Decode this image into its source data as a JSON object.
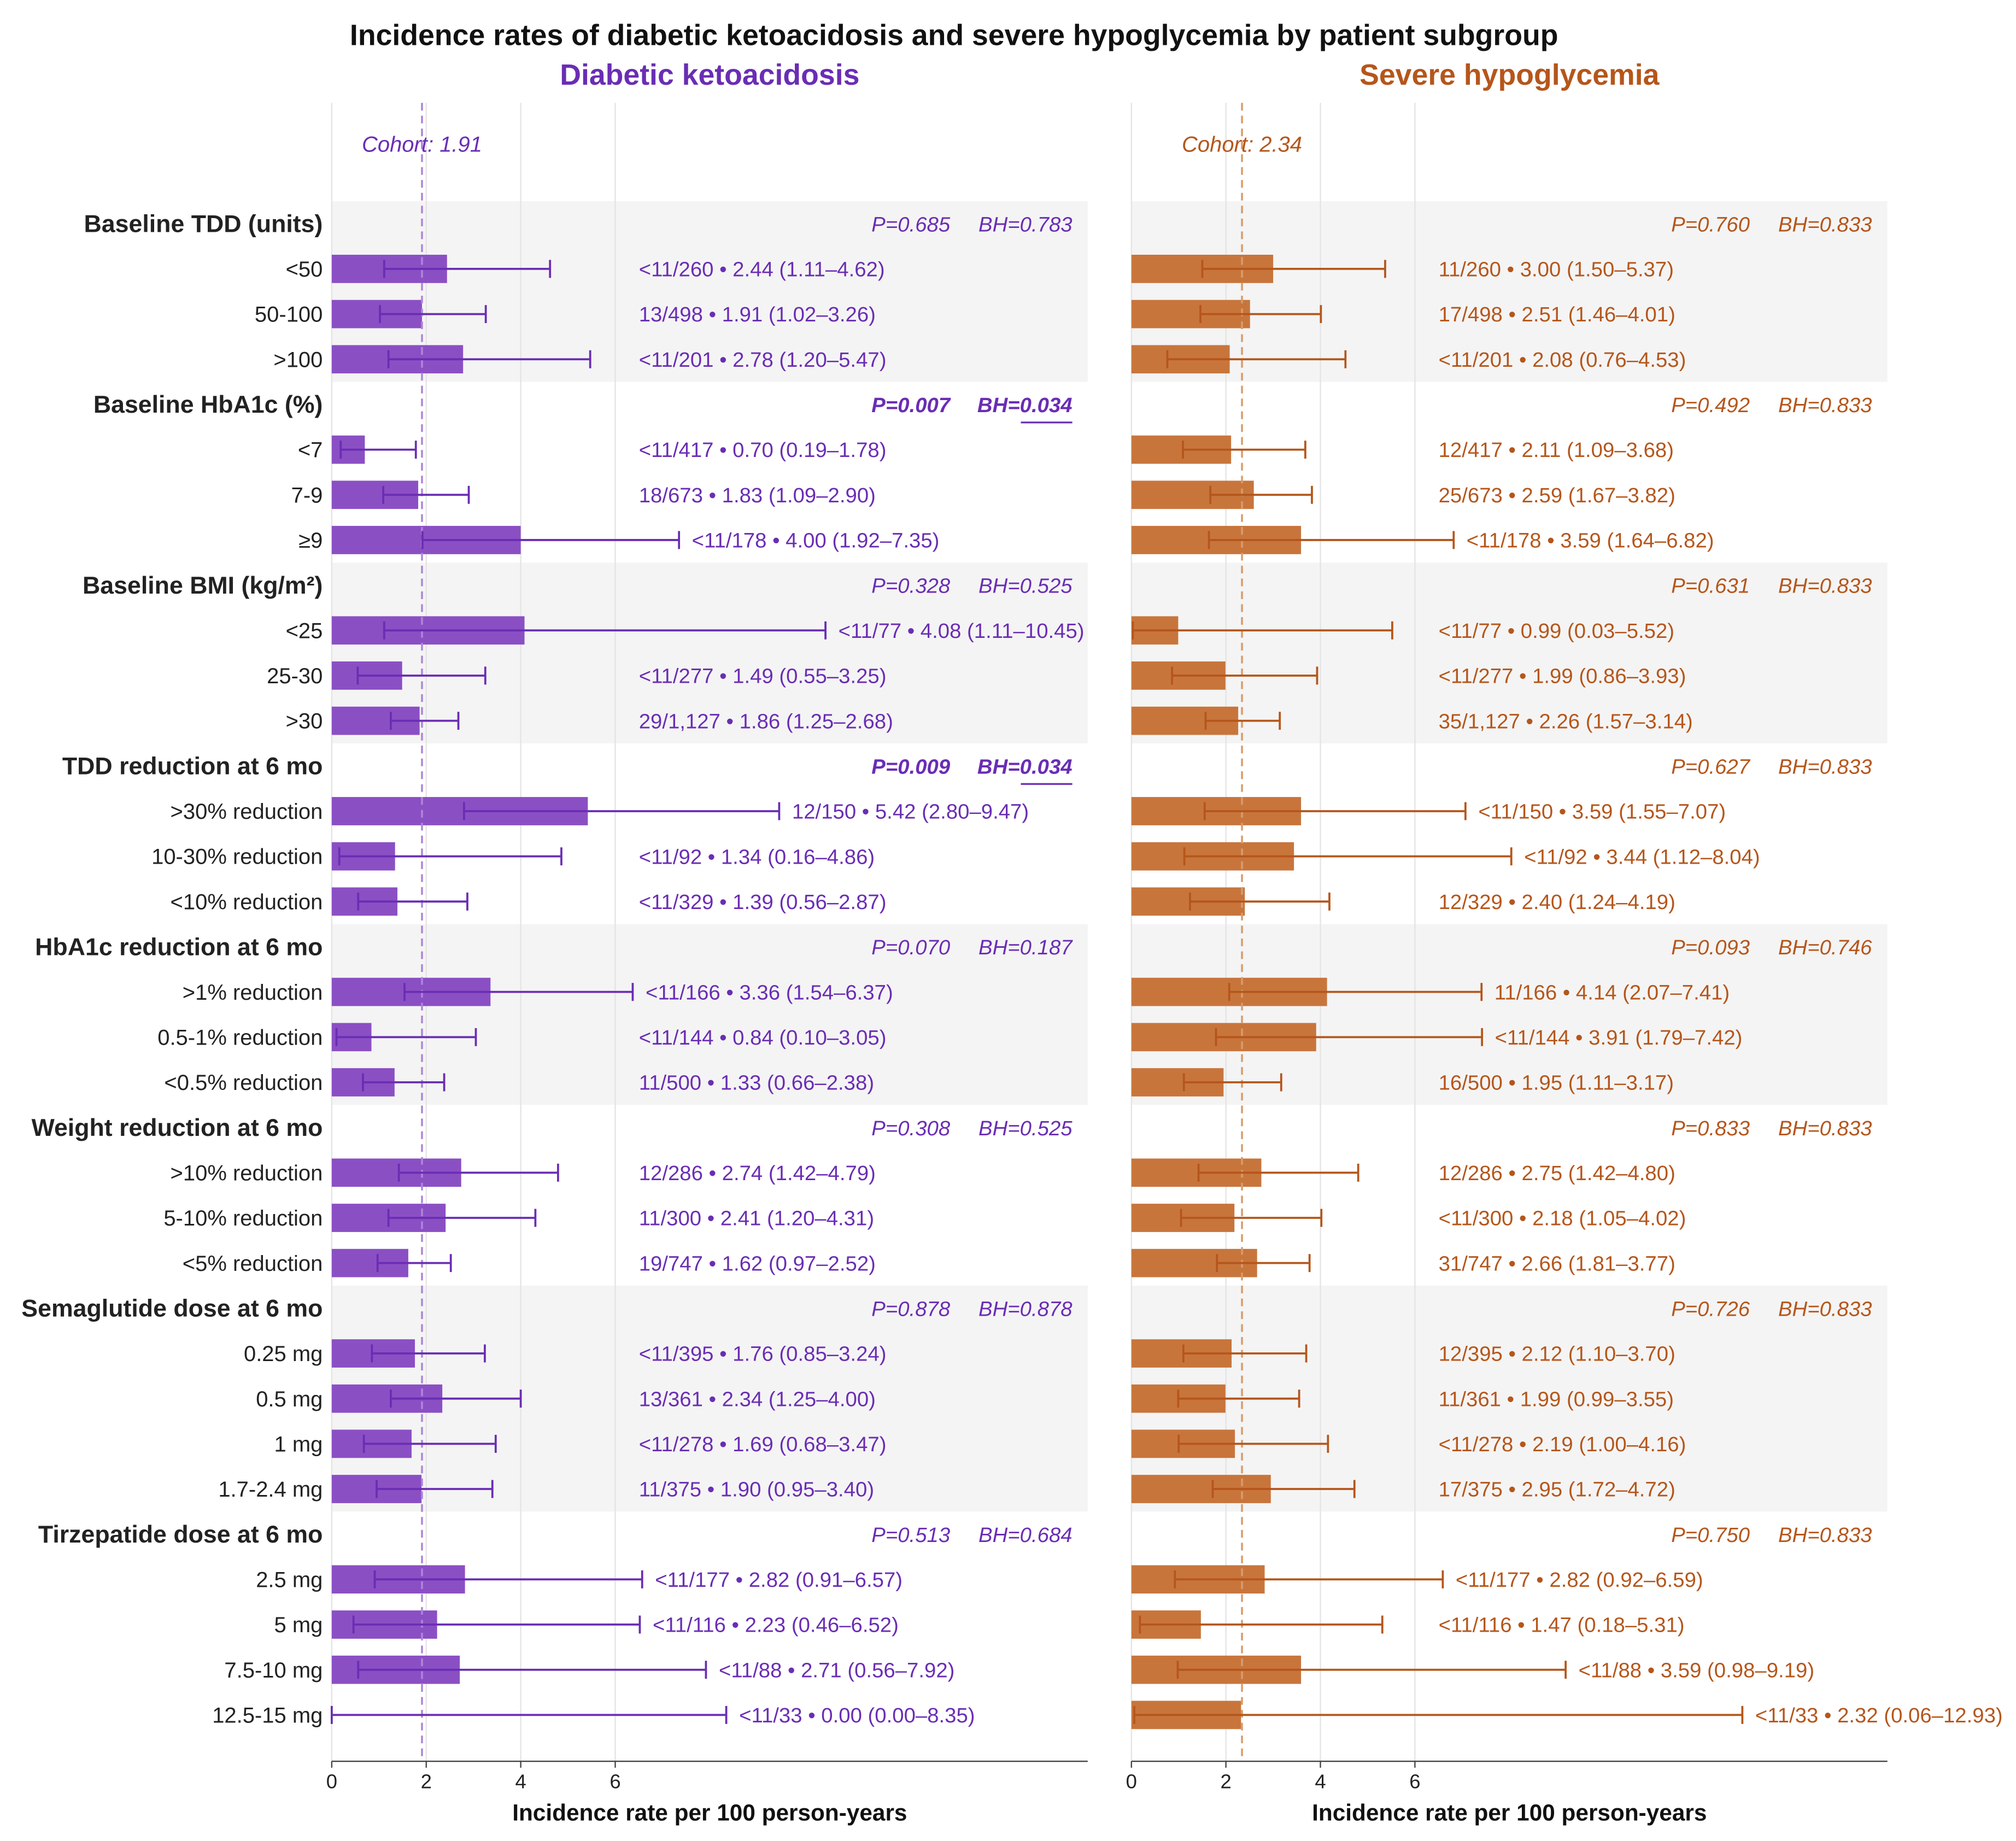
{
  "chart_data": {
    "type": "bar",
    "orientation": "horizontal",
    "title": "Incidence rates of diabetic ketoacidosis and severe hypoglycemia by patient subgroup",
    "xlabel": "Incidence rate per 100 person-years",
    "xlim": [
      0,
      16
    ],
    "xticks": [
      0,
      2,
      4,
      6
    ],
    "grid": "vertical",
    "band_color": "#f4f4f4",
    "grid_color": "#e4e4e4",
    "panels": [
      {
        "key": "dka",
        "title": "Diabetic ketoacidosis",
        "color": "#6a2db4",
        "bar_color": "#8b4fc4",
        "cohort_color": "#ad86da",
        "cohort_label": "Cohort: 1.91",
        "cohort_rate": 1.91
      },
      {
        "key": "sh",
        "title": "Severe hypoglycemia",
        "color": "#b5561b",
        "bar_color": "#c8753c",
        "cohort_color": "#d79d6c",
        "cohort_label": "Cohort: 2.34",
        "cohort_rate": 2.34
      }
    ],
    "groups": [
      {
        "name": "Baseline TDD (units)",
        "shaded": true,
        "tests": {
          "dka": {
            "p": "P=0.685",
            "bh": "BH=0.783",
            "significant": false
          },
          "sh": {
            "p": "P=0.760",
            "bh": "BH=0.833",
            "significant": false
          }
        },
        "rows": [
          {
            "label": "<50",
            "dka": {
              "text": "<11/260 • 2.44 (1.11–4.62)",
              "rate": 2.44,
              "lo": 1.11,
              "hi": 4.62
            },
            "sh": {
              "text": "11/260 • 3.00 (1.50–5.37)",
              "rate": 3.0,
              "lo": 1.5,
              "hi": 5.37
            }
          },
          {
            "label": "50-100",
            "dka": {
              "text": "13/498 • 1.91 (1.02–3.26)",
              "rate": 1.91,
              "lo": 1.02,
              "hi": 3.26
            },
            "sh": {
              "text": "17/498 • 2.51 (1.46–4.01)",
              "rate": 2.51,
              "lo": 1.46,
              "hi": 4.01
            }
          },
          {
            "label": ">100",
            "dka": {
              "text": "<11/201 • 2.78 (1.20–5.47)",
              "rate": 2.78,
              "lo": 1.2,
              "hi": 5.47
            },
            "sh": {
              "text": "<11/201 • 2.08 (0.76–4.53)",
              "rate": 2.08,
              "lo": 0.76,
              "hi": 4.53
            }
          }
        ]
      },
      {
        "name": "Baseline HbA1c (%)",
        "shaded": false,
        "tests": {
          "dka": {
            "p": "P=0.007",
            "bh": "BH=0.034",
            "significant": true
          },
          "sh": {
            "p": "P=0.492",
            "bh": "BH=0.833",
            "significant": false
          }
        },
        "rows": [
          {
            "label": "<7",
            "dka": {
              "text": "<11/417 • 0.70 (0.19–1.78)",
              "rate": 0.7,
              "lo": 0.19,
              "hi": 1.78
            },
            "sh": {
              "text": "12/417 • 2.11 (1.09–3.68)",
              "rate": 2.11,
              "lo": 1.09,
              "hi": 3.68
            }
          },
          {
            "label": "7-9",
            "dka": {
              "text": "18/673 • 1.83 (1.09–2.90)",
              "rate": 1.83,
              "lo": 1.09,
              "hi": 2.9
            },
            "sh": {
              "text": "25/673 • 2.59 (1.67–3.82)",
              "rate": 2.59,
              "lo": 1.67,
              "hi": 3.82
            }
          },
          {
            "label": "≥9",
            "dka": {
              "text": "<11/178 • 4.00 (1.92–7.35)",
              "rate": 4.0,
              "lo": 1.92,
              "hi": 7.35
            },
            "sh": {
              "text": "<11/178 • 3.59 (1.64–6.82)",
              "rate": 3.59,
              "lo": 1.64,
              "hi": 6.82
            }
          }
        ]
      },
      {
        "name": "Baseline BMI (kg/m²)",
        "shaded": true,
        "tests": {
          "dka": {
            "p": "P=0.328",
            "bh": "BH=0.525",
            "significant": false
          },
          "sh": {
            "p": "P=0.631",
            "bh": "BH=0.833",
            "significant": false
          }
        },
        "rows": [
          {
            "label": "<25",
            "dka": {
              "text": "<11/77 • 4.08 (1.11–10.45)",
              "rate": 4.08,
              "lo": 1.11,
              "hi": 10.45
            },
            "sh": {
              "text": "<11/77 • 0.99 (0.03–5.52)",
              "rate": 0.99,
              "lo": 0.03,
              "hi": 5.52
            }
          },
          {
            "label": "25-30",
            "dka": {
              "text": "<11/277 • 1.49 (0.55–3.25)",
              "rate": 1.49,
              "lo": 0.55,
              "hi": 3.25
            },
            "sh": {
              "text": "<11/277 • 1.99 (0.86–3.93)",
              "rate": 1.99,
              "lo": 0.86,
              "hi": 3.93
            }
          },
          {
            "label": ">30",
            "dka": {
              "text": "29/1,127 • 1.86 (1.25–2.68)",
              "rate": 1.86,
              "lo": 1.25,
              "hi": 2.68
            },
            "sh": {
              "text": "35/1,127 • 2.26 (1.57–3.14)",
              "rate": 2.26,
              "lo": 1.57,
              "hi": 3.14
            }
          }
        ]
      },
      {
        "name": "TDD reduction at 6 mo",
        "shaded": false,
        "tests": {
          "dka": {
            "p": "P=0.009",
            "bh": "BH=0.034",
            "significant": true
          },
          "sh": {
            "p": "P=0.627",
            "bh": "BH=0.833",
            "significant": false
          }
        },
        "rows": [
          {
            "label": ">30% reduction",
            "dka": {
              "text": "12/150 • 5.42 (2.80–9.47)",
              "rate": 5.42,
              "lo": 2.8,
              "hi": 9.47
            },
            "sh": {
              "text": "<11/150 • 3.59 (1.55–7.07)",
              "rate": 3.59,
              "lo": 1.55,
              "hi": 7.07
            }
          },
          {
            "label": "10-30% reduction",
            "dka": {
              "text": "<11/92 • 1.34 (0.16–4.86)",
              "rate": 1.34,
              "lo": 0.16,
              "hi": 4.86
            },
            "sh": {
              "text": "<11/92 • 3.44 (1.12–8.04)",
              "rate": 3.44,
              "lo": 1.12,
              "hi": 8.04
            }
          },
          {
            "label": "<10% reduction",
            "dka": {
              "text": "<11/329 • 1.39 (0.56–2.87)",
              "rate": 1.39,
              "lo": 0.56,
              "hi": 2.87
            },
            "sh": {
              "text": "12/329 • 2.40 (1.24–4.19)",
              "rate": 2.4,
              "lo": 1.24,
              "hi": 4.19
            }
          }
        ]
      },
      {
        "name": "HbA1c reduction at 6 mo",
        "shaded": true,
        "tests": {
          "dka": {
            "p": "P=0.070",
            "bh": "BH=0.187",
            "significant": false
          },
          "sh": {
            "p": "P=0.093",
            "bh": "BH=0.746",
            "significant": false
          }
        },
        "rows": [
          {
            "label": ">1% reduction",
            "dka": {
              "text": "<11/166 • 3.36 (1.54–6.37)",
              "rate": 3.36,
              "lo": 1.54,
              "hi": 6.37
            },
            "sh": {
              "text": "11/166 • 4.14 (2.07–7.41)",
              "rate": 4.14,
              "lo": 2.07,
              "hi": 7.41
            }
          },
          {
            "label": "0.5-1% reduction",
            "dka": {
              "text": "<11/144 • 0.84 (0.10–3.05)",
              "rate": 0.84,
              "lo": 0.1,
              "hi": 3.05
            },
            "sh": {
              "text": "<11/144 • 3.91 (1.79–7.42)",
              "rate": 3.91,
              "lo": 1.79,
              "hi": 7.42
            }
          },
          {
            "label": "<0.5% reduction",
            "dka": {
              "text": "11/500 • 1.33 (0.66–2.38)",
              "rate": 1.33,
              "lo": 0.66,
              "hi": 2.38
            },
            "sh": {
              "text": "16/500 • 1.95 (1.11–3.17)",
              "rate": 1.95,
              "lo": 1.11,
              "hi": 3.17
            }
          }
        ]
      },
      {
        "name": "Weight reduction at 6 mo",
        "shaded": false,
        "tests": {
          "dka": {
            "p": "P=0.308",
            "bh": "BH=0.525",
            "significant": false
          },
          "sh": {
            "p": "P=0.833",
            "bh": "BH=0.833",
            "significant": false
          }
        },
        "rows": [
          {
            "label": ">10% reduction",
            "dka": {
              "text": "12/286 • 2.74 (1.42–4.79)",
              "rate": 2.74,
              "lo": 1.42,
              "hi": 4.79
            },
            "sh": {
              "text": "12/286 • 2.75 (1.42–4.80)",
              "rate": 2.75,
              "lo": 1.42,
              "hi": 4.8
            }
          },
          {
            "label": "5-10% reduction",
            "dka": {
              "text": "11/300 • 2.41 (1.20–4.31)",
              "rate": 2.41,
              "lo": 1.2,
              "hi": 4.31
            },
            "sh": {
              "text": "<11/300 • 2.18 (1.05–4.02)",
              "rate": 2.18,
              "lo": 1.05,
              "hi": 4.02
            }
          },
          {
            "label": "<5% reduction",
            "dka": {
              "text": "19/747 • 1.62 (0.97–2.52)",
              "rate": 1.62,
              "lo": 0.97,
              "hi": 2.52
            },
            "sh": {
              "text": "31/747 • 2.66 (1.81–3.77)",
              "rate": 2.66,
              "lo": 1.81,
              "hi": 3.77
            }
          }
        ]
      },
      {
        "name": "Semaglutide dose at 6 mo",
        "shaded": true,
        "tests": {
          "dka": {
            "p": "P=0.878",
            "bh": "BH=0.878",
            "significant": false
          },
          "sh": {
            "p": "P=0.726",
            "bh": "BH=0.833",
            "significant": false
          }
        },
        "rows": [
          {
            "label": "0.25 mg",
            "dka": {
              "text": "<11/395 • 1.76 (0.85–3.24)",
              "rate": 1.76,
              "lo": 0.85,
              "hi": 3.24
            },
            "sh": {
              "text": "12/395 • 2.12 (1.10–3.70)",
              "rate": 2.12,
              "lo": 1.1,
              "hi": 3.7
            }
          },
          {
            "label": "0.5 mg",
            "dka": {
              "text": "13/361 • 2.34 (1.25–4.00)",
              "rate": 2.34,
              "lo": 1.25,
              "hi": 4.0
            },
            "sh": {
              "text": "11/361 • 1.99 (0.99–3.55)",
              "rate": 1.99,
              "lo": 0.99,
              "hi": 3.55
            }
          },
          {
            "label": "1 mg",
            "dka": {
              "text": "<11/278 • 1.69 (0.68–3.47)",
              "rate": 1.69,
              "lo": 0.68,
              "hi": 3.47
            },
            "sh": {
              "text": "<11/278 • 2.19 (1.00–4.16)",
              "rate": 2.19,
              "lo": 1.0,
              "hi": 4.16
            }
          },
          {
            "label": "1.7-2.4 mg",
            "dka": {
              "text": "11/375 • 1.90 (0.95–3.40)",
              "rate": 1.9,
              "lo": 0.95,
              "hi": 3.4
            },
            "sh": {
              "text": "17/375 • 2.95 (1.72–4.72)",
              "rate": 2.95,
              "lo": 1.72,
              "hi": 4.72
            }
          }
        ]
      },
      {
        "name": "Tirzepatide dose at 6 mo",
        "shaded": false,
        "tests": {
          "dka": {
            "p": "P=0.513",
            "bh": "BH=0.684",
            "significant": false
          },
          "sh": {
            "p": "P=0.750",
            "bh": "BH=0.833",
            "significant": false
          }
        },
        "rows": [
          {
            "label": "2.5 mg",
            "dka": {
              "text": "<11/177 • 2.82 (0.91–6.57)",
              "rate": 2.82,
              "lo": 0.91,
              "hi": 6.57
            },
            "sh": {
              "text": "<11/177 • 2.82 (0.92–6.59)",
              "rate": 2.82,
              "lo": 0.92,
              "hi": 6.59
            }
          },
          {
            "label": "5 mg",
            "dka": {
              "text": "<11/116 • 2.23 (0.46–6.52)",
              "rate": 2.23,
              "lo": 0.46,
              "hi": 6.52
            },
            "sh": {
              "text": "<11/116 • 1.47 (0.18–5.31)",
              "rate": 1.47,
              "lo": 0.18,
              "hi": 5.31
            }
          },
          {
            "label": "7.5-10 mg",
            "dka": {
              "text": "<11/88 • 2.71 (0.56–7.92)",
              "rate": 2.71,
              "lo": 0.56,
              "hi": 7.92
            },
            "sh": {
              "text": "<11/88 • 3.59 (0.98–9.19)",
              "rate": 3.59,
              "lo": 0.98,
              "hi": 9.19
            }
          },
          {
            "label": "12.5-15 mg",
            "dka": {
              "text": "<11/33 • 0.00 (0.00–8.35)",
              "rate": 0.0,
              "lo": 0.0,
              "hi": 8.35
            },
            "sh": {
              "text": "<11/33 • 2.32 (0.06–12.93)",
              "rate": 2.32,
              "lo": 0.06,
              "hi": 12.93
            }
          }
        ]
      }
    ]
  }
}
